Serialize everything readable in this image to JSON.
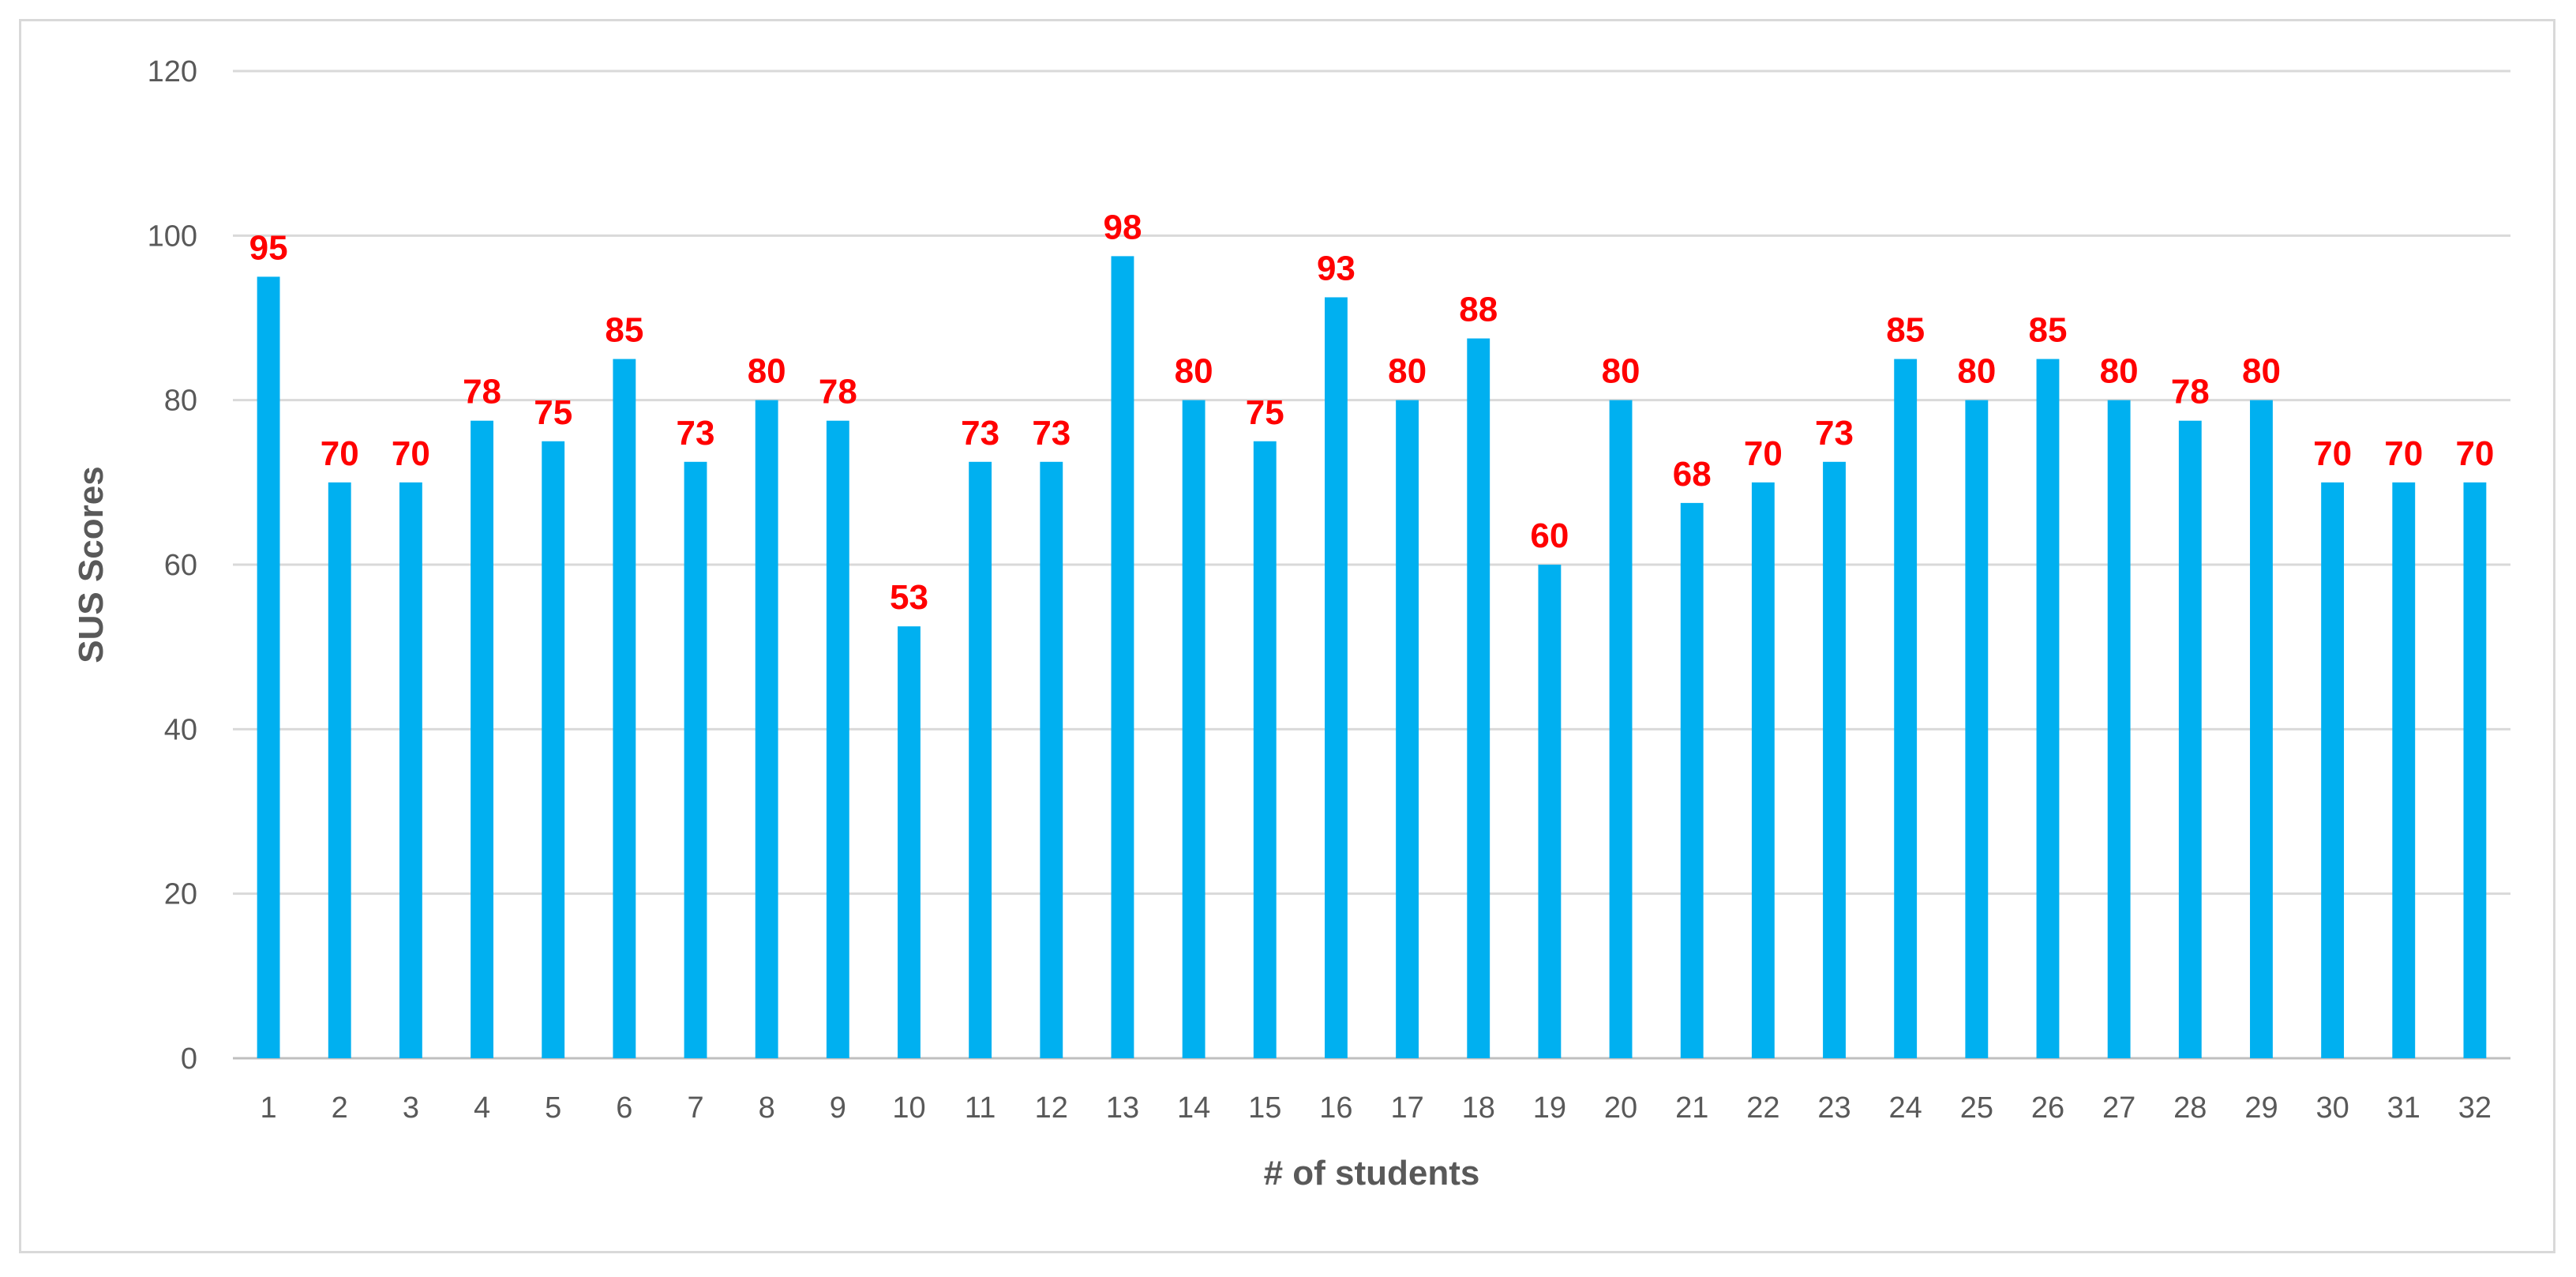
{
  "chart_data": {
    "type": "bar",
    "title": "",
    "xlabel": "# of students",
    "ylabel": "SUS Scores",
    "ylim": [
      0,
      120
    ],
    "yticks": [
      0,
      20,
      40,
      60,
      80,
      100,
      120
    ],
    "grid": true,
    "legend": "none",
    "categories": [
      "1",
      "2",
      "3",
      "4",
      "5",
      "6",
      "7",
      "8",
      "9",
      "10",
      "11",
      "12",
      "13",
      "14",
      "15",
      "16",
      "17",
      "18",
      "19",
      "20",
      "21",
      "22",
      "23",
      "24",
      "25",
      "26",
      "27",
      "28",
      "29",
      "30",
      "31",
      "32"
    ],
    "values": [
      95,
      70,
      70,
      77.5,
      75,
      85,
      72.5,
      80,
      77.5,
      52.5,
      72.5,
      72.5,
      97.5,
      80,
      75,
      92.5,
      80,
      87.5,
      60,
      80,
      67.5,
      70,
      72.5,
      85,
      80,
      85,
      80,
      77.5,
      80,
      70,
      70,
      70
    ],
    "data_labels": [
      "95",
      "70",
      "70",
      "78",
      "75",
      "85",
      "73",
      "80",
      "78",
      "53",
      "73",
      "73",
      "98",
      "80",
      "75",
      "93",
      "80",
      "88",
      "60",
      "80",
      "68",
      "70",
      "73",
      "85",
      "80",
      "85",
      "80",
      "78",
      "80",
      "70",
      "70",
      "70"
    ],
    "colors": {
      "bar": "#00b0f0",
      "data_label": "#ff0000",
      "grid": "#d9d9d9",
      "axis_line": "#bfbfbf",
      "text": "#595959"
    }
  }
}
